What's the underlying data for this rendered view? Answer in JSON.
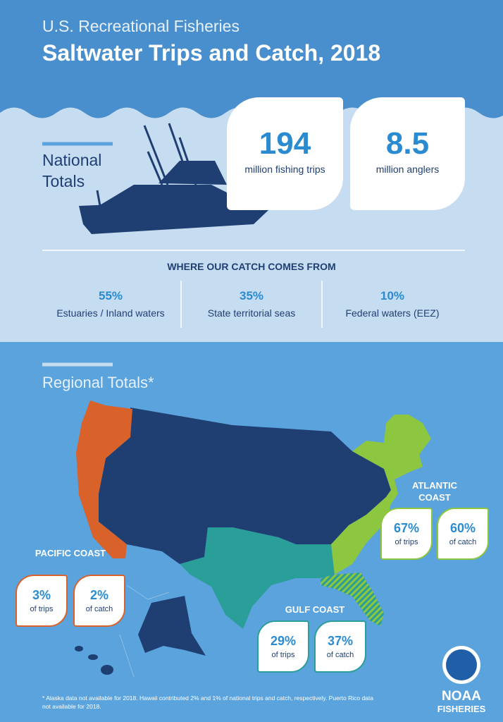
{
  "header": {
    "kicker": "U.S. Recreational Fisheries",
    "title": "Saltwater Trips and Catch, 2018"
  },
  "national": {
    "heading": "National Totals",
    "stats": [
      {
        "value": "194",
        "label": "million fishing trips"
      },
      {
        "value": "8.5",
        "label": "million anglers"
      }
    ]
  },
  "catch_sources": {
    "heading": "WHERE OUR CATCH COMES FROM",
    "items": [
      {
        "value": "55%",
        "label": "Estuaries / Inland waters"
      },
      {
        "value": "35%",
        "label": "State territorial seas"
      },
      {
        "value": "10%",
        "label": "Federal waters (EEZ)"
      }
    ]
  },
  "regional": {
    "heading": "Regional Totals*",
    "regions": [
      {
        "name": "ATLANTIC COAST",
        "trips": "67%",
        "trips_label": "of trips",
        "catch": "60%",
        "catch_label": "of catch"
      },
      {
        "name": "PACIFIC COAST",
        "trips": "3%",
        "trips_label": "of trips",
        "catch": "2%",
        "catch_label": "of catch"
      },
      {
        "name": "GULF COAST",
        "trips": "29%",
        "trips_label": "of trips",
        "catch": "37%",
        "catch_label": "of catch"
      }
    ]
  },
  "footnote": "* Alaska data not available for 2018. Hawaii contributed 2% and 1% of national trips and catch, respectively. Puerto Rico data not available for 2018.",
  "logo": {
    "line1": "NOAA",
    "line2": "FISHERIES"
  }
}
